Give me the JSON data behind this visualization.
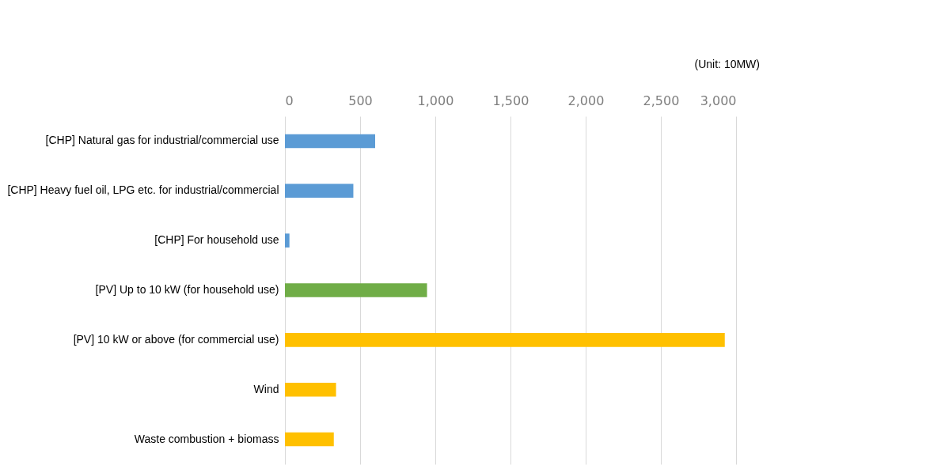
{
  "chart_data": {
    "type": "bar",
    "orientation": "horizontal",
    "categories": [
      "[CHP] Natural gas for industrial/commercial use",
      "[CHP] Heavy fuel oil, LPG etc. for industrial/commercial",
      "[CHP] For household use",
      "[PV] Up to 10 kW (for household use)",
      "[PV] 10 kW or above (for commercial use)",
      "Wind",
      "Waste combustion + biomass"
    ],
    "values": [
      600,
      455,
      30,
      945,
      2925,
      340,
      325
    ],
    "colors": [
      "#5b9bd5",
      "#5b9bd5",
      "#5b9bd5",
      "#70ad47",
      "#ffc000",
      "#ffc000",
      "#ffc000"
    ],
    "xlim": [
      0,
      3000
    ],
    "xticks": [
      0,
      500,
      {
        "value": 1000,
        "label": "1,000"
      },
      {
        "value": 1500,
        "label": "1,500"
      },
      {
        "value": 2000,
        "label": "2,000"
      },
      {
        "value": 2500,
        "label": "2,500"
      },
      {
        "value": 3000,
        "label": "3,000"
      }
    ],
    "grid": "x",
    "annotations": [
      "(Unit: 10MW)"
    ]
  }
}
